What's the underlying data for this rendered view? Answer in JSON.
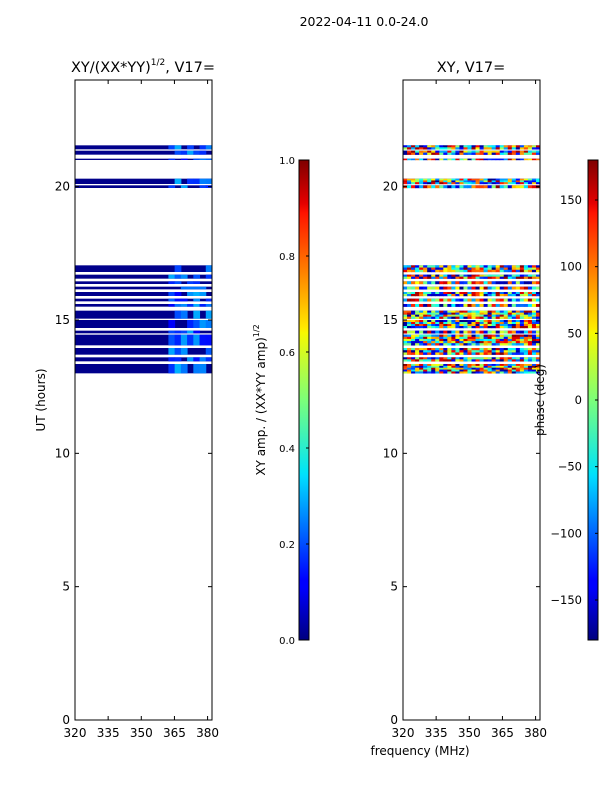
{
  "figure_title": "2022-04-11 0.0-24.0",
  "colors": {
    "bg": "#ffffff",
    "frame": "#000000",
    "low_amp": "#00008b",
    "mid_amp": "#0050ff",
    "cyan": "#00d8ff"
  },
  "chart_data": [
    {
      "id": "amp",
      "type": "heatmap",
      "title_text": "XY/(XX*YY)",
      "title_sup": "1/2",
      "title_suffix": ", V17=",
      "xlabel": "",
      "ylabel": "UT (hours)",
      "xlim": [
        320,
        382
      ],
      "ylim": [
        0,
        24
      ],
      "xticks": [
        320,
        335,
        350,
        365,
        380
      ],
      "yticks": [
        0,
        5,
        10,
        15,
        20
      ],
      "colormap": "jet",
      "colorbar": {
        "label": "XY amp. / (XX*YY amp)",
        "label_sup": "1/2",
        "range": [
          0.0,
          1.0
        ],
        "ticks": [
          "0.0",
          "0.2",
          "0.4",
          "0.6",
          "0.8",
          "1.0"
        ]
      },
      "data_hours": [
        [
          13.0,
          13.35
        ],
        [
          13.45,
          13.6
        ],
        [
          13.7,
          13.95
        ],
        [
          14.05,
          14.45
        ],
        [
          14.5,
          14.6
        ],
        [
          14.7,
          15.0
        ],
        [
          15.05,
          15.35
        ],
        [
          15.5,
          15.6
        ],
        [
          15.7,
          15.8
        ],
        [
          15.9,
          16.05
        ],
        [
          16.15,
          16.25
        ],
        [
          16.35,
          16.45
        ],
        [
          16.55,
          16.7
        ],
        [
          16.8,
          17.05
        ],
        [
          19.95,
          20.05
        ],
        [
          20.1,
          20.3
        ],
        [
          21.0,
          21.05
        ],
        [
          21.2,
          21.35
        ],
        [
          21.4,
          21.55
        ]
      ]
    },
    {
      "id": "phase",
      "type": "heatmap",
      "title_text": "XY, V17=",
      "xlabel": "frequency (MHz)",
      "ylabel": "",
      "xlim": [
        320,
        382
      ],
      "ylim": [
        0,
        24
      ],
      "xticks": [
        320,
        335,
        350,
        365,
        380
      ],
      "yticks": [
        0,
        5,
        10,
        15,
        20
      ],
      "colormap": "jet",
      "colorbar": {
        "label": "phase (deg)",
        "range": [
          -180,
          180
        ],
        "ticks": [
          "−150",
          "−100",
          "−50",
          "0",
          "50",
          "100",
          "150"
        ],
        "tick_values": [
          -150,
          -100,
          -50,
          0,
          50,
          100,
          150
        ]
      },
      "data_hours": [
        [
          13.0,
          13.35
        ],
        [
          13.45,
          13.6
        ],
        [
          13.7,
          13.95
        ],
        [
          14.05,
          14.45
        ],
        [
          14.5,
          14.6
        ],
        [
          14.7,
          15.0
        ],
        [
          15.05,
          15.35
        ],
        [
          15.5,
          15.6
        ],
        [
          15.7,
          15.8
        ],
        [
          15.9,
          16.05
        ],
        [
          16.15,
          16.25
        ],
        [
          16.35,
          16.45
        ],
        [
          16.55,
          16.7
        ],
        [
          16.8,
          17.05
        ],
        [
          19.95,
          20.05
        ],
        [
          20.1,
          20.3
        ],
        [
          21.0,
          21.05
        ],
        [
          21.2,
          21.35
        ],
        [
          21.4,
          21.55
        ]
      ]
    }
  ]
}
